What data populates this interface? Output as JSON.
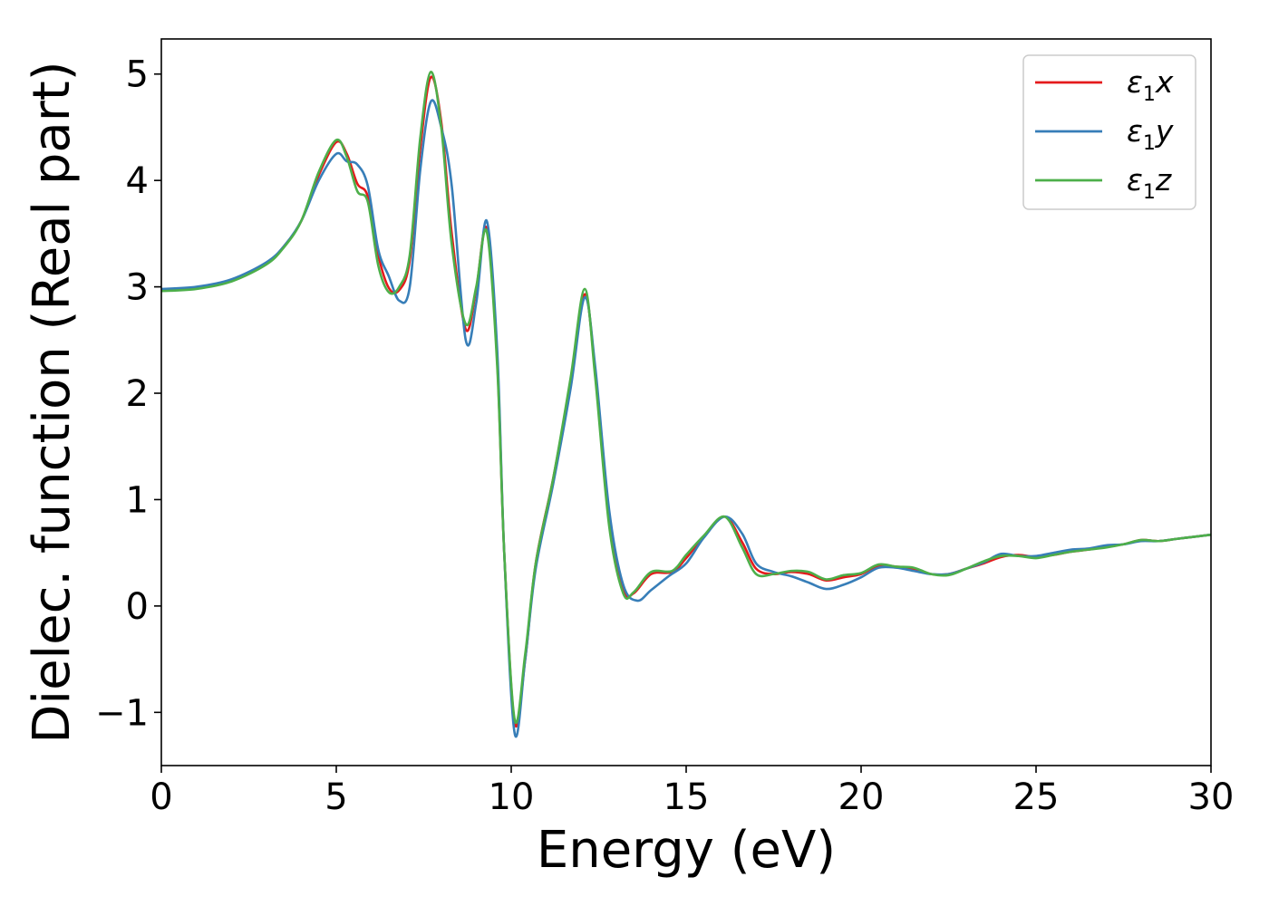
{
  "chart_data": {
    "type": "line",
    "title": "",
    "xlabel": "Energy (eV)",
    "ylabel": "Dielec. function (Real part)",
    "xlim": [
      0,
      30
    ],
    "ylim": [
      -1.5,
      5.33
    ],
    "xticks": [
      0,
      5,
      10,
      15,
      20,
      25,
      30
    ],
    "xtick_labels": [
      "0",
      "5",
      "10",
      "15",
      "20",
      "25",
      "30"
    ],
    "yticks": [
      -1,
      0,
      1,
      2,
      3,
      4,
      5
    ],
    "ytick_labels": [
      "−1",
      "0",
      "1",
      "2",
      "3",
      "4",
      "5"
    ],
    "grid": false,
    "legend_position": "top-right",
    "series": [
      {
        "name": "ε1x",
        "legend_base": "ε",
        "legend_sub": "1",
        "legend_suffix": "x",
        "color": "#e41a1c",
        "points": [
          [
            0,
            2.97
          ],
          [
            1,
            2.99
          ],
          [
            2,
            3.06
          ],
          [
            3,
            3.22
          ],
          [
            3.5,
            3.38
          ],
          [
            4,
            3.62
          ],
          [
            4.5,
            4.05
          ],
          [
            5,
            4.36
          ],
          [
            5.3,
            4.25
          ],
          [
            5.6,
            3.97
          ],
          [
            5.9,
            3.85
          ],
          [
            6.2,
            3.3
          ],
          [
            6.5,
            2.99
          ],
          [
            6.8,
            2.97
          ],
          [
            7.1,
            3.25
          ],
          [
            7.4,
            4.3
          ],
          [
            7.7,
            4.97
          ],
          [
            8.0,
            4.55
          ],
          [
            8.3,
            3.5
          ],
          [
            8.7,
            2.6
          ],
          [
            9.0,
            2.98
          ],
          [
            9.3,
            3.55
          ],
          [
            9.6,
            2.3
          ],
          [
            9.8,
            0.5
          ],
          [
            10.1,
            -1.1
          ],
          [
            10.4,
            -0.5
          ],
          [
            10.7,
            0.4
          ],
          [
            11.2,
            1.2
          ],
          [
            11.7,
            2.1
          ],
          [
            12.1,
            2.93
          ],
          [
            12.4,
            2.2
          ],
          [
            12.8,
            0.8
          ],
          [
            13.2,
            0.15
          ],
          [
            13.5,
            0.12
          ],
          [
            14.0,
            0.3
          ],
          [
            14.6,
            0.32
          ],
          [
            15.0,
            0.45
          ],
          [
            15.5,
            0.65
          ],
          [
            16.1,
            0.84
          ],
          [
            16.6,
            0.6
          ],
          [
            17.0,
            0.35
          ],
          [
            17.5,
            0.3
          ],
          [
            18.0,
            0.32
          ],
          [
            18.5,
            0.3
          ],
          [
            19.0,
            0.24
          ],
          [
            19.5,
            0.27
          ],
          [
            20.0,
            0.3
          ],
          [
            20.5,
            0.38
          ],
          [
            21.0,
            0.37
          ],
          [
            21.5,
            0.35
          ],
          [
            22.0,
            0.3
          ],
          [
            22.5,
            0.3
          ],
          [
            23.0,
            0.35
          ],
          [
            23.5,
            0.4
          ],
          [
            24.0,
            0.46
          ],
          [
            24.5,
            0.48
          ],
          [
            25.0,
            0.46
          ],
          [
            25.5,
            0.48
          ],
          [
            26.0,
            0.51
          ],
          [
            26.5,
            0.53
          ],
          [
            27.0,
            0.56
          ],
          [
            27.5,
            0.58
          ],
          [
            28.0,
            0.62
          ],
          [
            28.5,
            0.61
          ],
          [
            29.0,
            0.63
          ],
          [
            29.5,
            0.65
          ],
          [
            30.0,
            0.67
          ]
        ]
      },
      {
        "name": "ε1y",
        "legend_base": "ε",
        "legend_sub": "1",
        "legend_suffix": "y",
        "color": "#377eb8",
        "points": [
          [
            0,
            2.98
          ],
          [
            1,
            3.0
          ],
          [
            2,
            3.07
          ],
          [
            3,
            3.23
          ],
          [
            3.5,
            3.38
          ],
          [
            4,
            3.62
          ],
          [
            4.5,
            4.0
          ],
          [
            5,
            4.25
          ],
          [
            5.3,
            4.18
          ],
          [
            5.6,
            4.15
          ],
          [
            5.9,
            3.95
          ],
          [
            6.2,
            3.35
          ],
          [
            6.5,
            3.1
          ],
          [
            6.8,
            2.87
          ],
          [
            7.1,
            3.0
          ],
          [
            7.4,
            4.1
          ],
          [
            7.7,
            4.74
          ],
          [
            8.0,
            4.5
          ],
          [
            8.3,
            3.95
          ],
          [
            8.7,
            2.5
          ],
          [
            9.0,
            2.85
          ],
          [
            9.3,
            3.62
          ],
          [
            9.6,
            2.4
          ],
          [
            9.8,
            0.5
          ],
          [
            10.1,
            -1.2
          ],
          [
            10.4,
            -0.5
          ],
          [
            10.7,
            0.35
          ],
          [
            11.2,
            1.15
          ],
          [
            11.7,
            2.05
          ],
          [
            12.1,
            2.9
          ],
          [
            12.4,
            2.25
          ],
          [
            12.8,
            0.9
          ],
          [
            13.2,
            0.2
          ],
          [
            13.6,
            0.05
          ],
          [
            14.0,
            0.15
          ],
          [
            14.5,
            0.28
          ],
          [
            15.0,
            0.4
          ],
          [
            15.5,
            0.64
          ],
          [
            16.1,
            0.84
          ],
          [
            16.6,
            0.68
          ],
          [
            17.0,
            0.4
          ],
          [
            17.5,
            0.32
          ],
          [
            18.0,
            0.28
          ],
          [
            18.5,
            0.22
          ],
          [
            19.0,
            0.16
          ],
          [
            19.5,
            0.2
          ],
          [
            20.0,
            0.27
          ],
          [
            20.5,
            0.36
          ],
          [
            21.0,
            0.36
          ],
          [
            21.5,
            0.33
          ],
          [
            22.0,
            0.3
          ],
          [
            22.5,
            0.3
          ],
          [
            23.0,
            0.35
          ],
          [
            23.5,
            0.41
          ],
          [
            24.0,
            0.49
          ],
          [
            24.5,
            0.47
          ],
          [
            25.0,
            0.47
          ],
          [
            25.5,
            0.5
          ],
          [
            26.0,
            0.53
          ],
          [
            26.5,
            0.54
          ],
          [
            27.0,
            0.57
          ],
          [
            27.5,
            0.58
          ],
          [
            28.0,
            0.61
          ],
          [
            28.5,
            0.61
          ],
          [
            29.0,
            0.63
          ],
          [
            29.5,
            0.65
          ],
          [
            30.0,
            0.67
          ]
        ]
      },
      {
        "name": "ε1z",
        "legend_base": "ε",
        "legend_sub": "1",
        "legend_suffix": "z",
        "color": "#4daf4a",
        "points": [
          [
            0,
            2.96
          ],
          [
            1,
            2.98
          ],
          [
            2,
            3.05
          ],
          [
            3,
            3.21
          ],
          [
            3.5,
            3.37
          ],
          [
            4,
            3.62
          ],
          [
            4.5,
            4.08
          ],
          [
            5,
            4.38
          ],
          [
            5.3,
            4.22
          ],
          [
            5.6,
            3.9
          ],
          [
            5.9,
            3.8
          ],
          [
            6.2,
            3.2
          ],
          [
            6.5,
            2.95
          ],
          [
            6.8,
            3.0
          ],
          [
            7.1,
            3.3
          ],
          [
            7.4,
            4.4
          ],
          [
            7.7,
            5.02
          ],
          [
            8.0,
            4.5
          ],
          [
            8.3,
            3.4
          ],
          [
            8.7,
            2.65
          ],
          [
            9.0,
            3.0
          ],
          [
            9.3,
            3.52
          ],
          [
            9.6,
            2.25
          ],
          [
            9.8,
            0.5
          ],
          [
            10.1,
            -1.07
          ],
          [
            10.4,
            -0.45
          ],
          [
            10.7,
            0.4
          ],
          [
            11.2,
            1.2
          ],
          [
            11.7,
            2.15
          ],
          [
            12.1,
            2.98
          ],
          [
            12.4,
            2.15
          ],
          [
            12.8,
            0.75
          ],
          [
            13.2,
            0.12
          ],
          [
            13.5,
            0.13
          ],
          [
            14.0,
            0.32
          ],
          [
            14.6,
            0.33
          ],
          [
            15.0,
            0.48
          ],
          [
            15.5,
            0.66
          ],
          [
            16.1,
            0.84
          ],
          [
            16.6,
            0.55
          ],
          [
            17.0,
            0.3
          ],
          [
            17.5,
            0.3
          ],
          [
            18.0,
            0.33
          ],
          [
            18.5,
            0.32
          ],
          [
            19.0,
            0.25
          ],
          [
            19.5,
            0.29
          ],
          [
            20.0,
            0.31
          ],
          [
            20.5,
            0.39
          ],
          [
            21.0,
            0.37
          ],
          [
            21.5,
            0.36
          ],
          [
            22.0,
            0.3
          ],
          [
            22.5,
            0.29
          ],
          [
            23.0,
            0.35
          ],
          [
            23.5,
            0.42
          ],
          [
            24.0,
            0.47
          ],
          [
            24.5,
            0.47
          ],
          [
            25.0,
            0.45
          ],
          [
            25.5,
            0.48
          ],
          [
            26.0,
            0.51
          ],
          [
            26.5,
            0.53
          ],
          [
            27.0,
            0.55
          ],
          [
            27.5,
            0.58
          ],
          [
            28.0,
            0.62
          ],
          [
            28.5,
            0.61
          ],
          [
            29.0,
            0.63
          ],
          [
            29.5,
            0.65
          ],
          [
            30.0,
            0.67
          ]
        ]
      }
    ]
  }
}
